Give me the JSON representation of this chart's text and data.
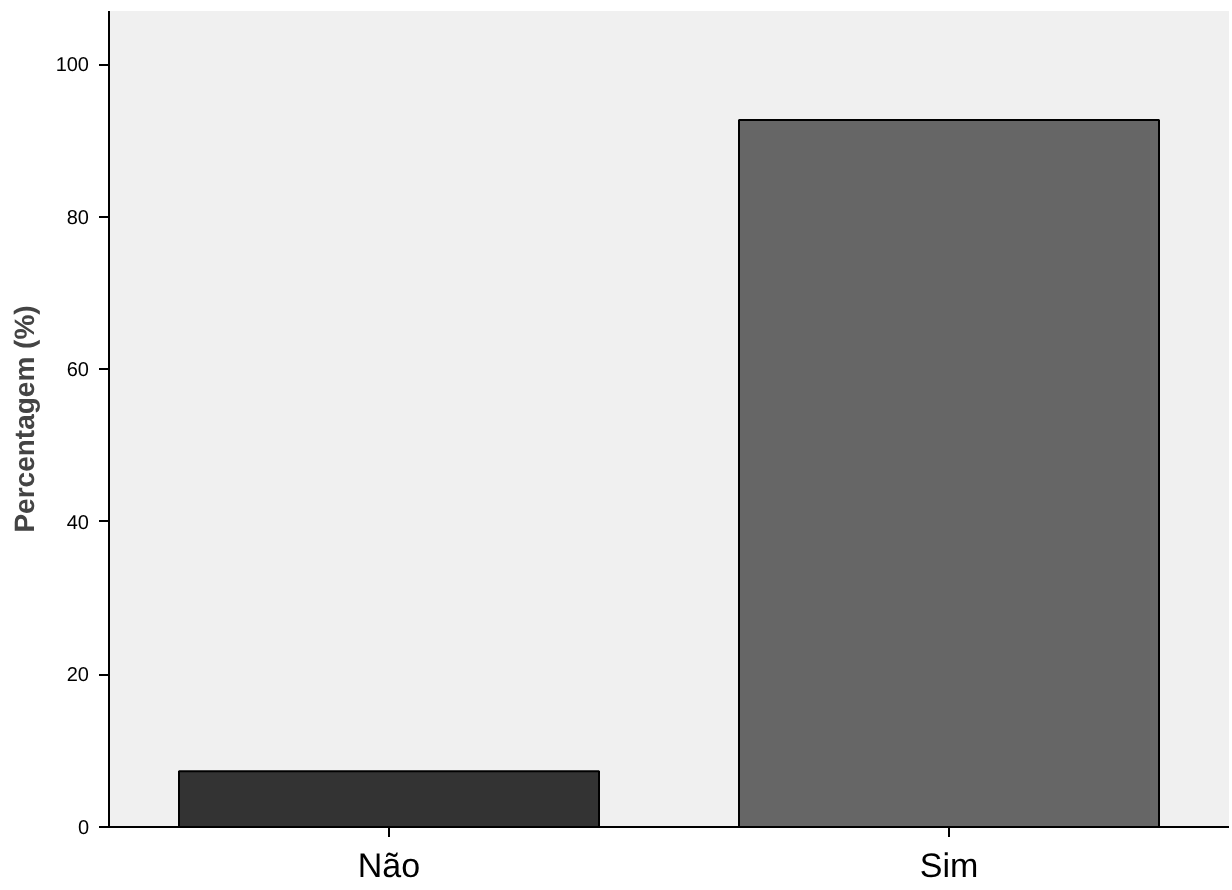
{
  "chart_data": {
    "type": "bar",
    "ylabel": "Percentagem (%)",
    "categories": [
      "Não",
      "Sim"
    ],
    "values": [
      7.3,
      92.7
    ],
    "colors": [
      "#333333",
      "#666666"
    ],
    "ylim": [
      0,
      107
    ],
    "yticks": [
      0,
      20,
      40,
      60,
      80,
      100
    ],
    "grid": false
  }
}
